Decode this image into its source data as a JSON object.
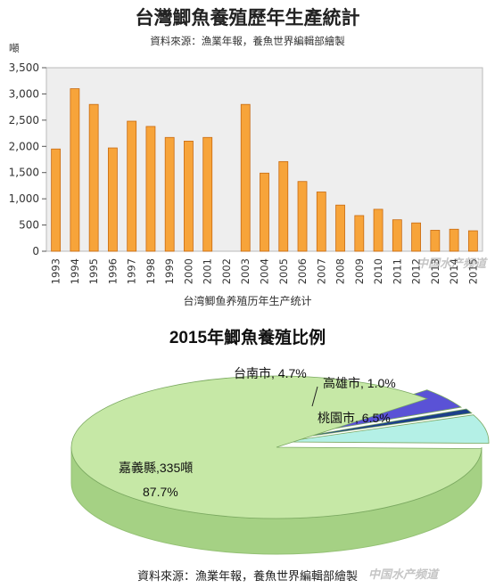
{
  "bar_chart": {
    "title": "台灣鯽魚養殖歷年生產統計",
    "source": "資料來源：漁業年報，養魚世界編輯部繪製",
    "unit": "噸",
    "caption": "台湾鲫鱼养殖历年生产统计"
  },
  "pie_chart": {
    "title": "2015年鯽魚養殖比例",
    "source": "資料來源：漁業年報，養魚世界編輯部繪製",
    "labels": {
      "tainan": "台南市, 4.7%",
      "kaohsiung": "高雄市, 1.0%",
      "taoyuan": "桃園市, 6.5%",
      "chiayi_name": "嘉義縣,335噸",
      "chiayi_pct": "87.7%"
    }
  },
  "watermark": "中国水产频道",
  "colors": {
    "bar_fill": "#f7a43a",
    "bar_edge": "#c86a10",
    "pie_main": "#c6e8a6",
    "pie_main_side": "#a5d184",
    "pie_tainan": "#5a52d6",
    "pie_kaohsiung": "#1c3f8a",
    "pie_taoyuan": "#b4f0e6"
  },
  "chart_data": [
    {
      "type": "bar",
      "title": "台灣鯽魚養殖歷年生產統計",
      "ylabel": "噸",
      "categories": [
        "1993",
        "1994",
        "1995",
        "1996",
        "1997",
        "1998",
        "1999",
        "2000",
        "2001",
        "2002",
        "2003",
        "2004",
        "2005",
        "2006",
        "2007",
        "2008",
        "2009",
        "2010",
        "2011",
        "2012",
        "2013",
        "2014",
        "2015"
      ],
      "values": [
        1950,
        3100,
        2800,
        1970,
        2480,
        2380,
        2170,
        2100,
        2170,
        null,
        2800,
        1490,
        1710,
        1330,
        1130,
        880,
        680,
        800,
        600,
        540,
        400,
        420,
        390
      ],
      "yticks": [
        "0",
        "500",
        "1,000",
        "1,500",
        "2,000",
        "2,500",
        "3,000",
        "3,500"
      ],
      "ylim": [
        0,
        3500
      ],
      "grid": false
    },
    {
      "type": "pie",
      "title": "2015年鯽魚養殖比例",
      "slices": [
        {
          "name": "嘉義縣",
          "value": 87.7
        },
        {
          "name": "台南市",
          "value": 4.7
        },
        {
          "name": "高雄市",
          "value": 1.0
        },
        {
          "name": "桃園市",
          "value": 6.5
        }
      ]
    }
  ]
}
